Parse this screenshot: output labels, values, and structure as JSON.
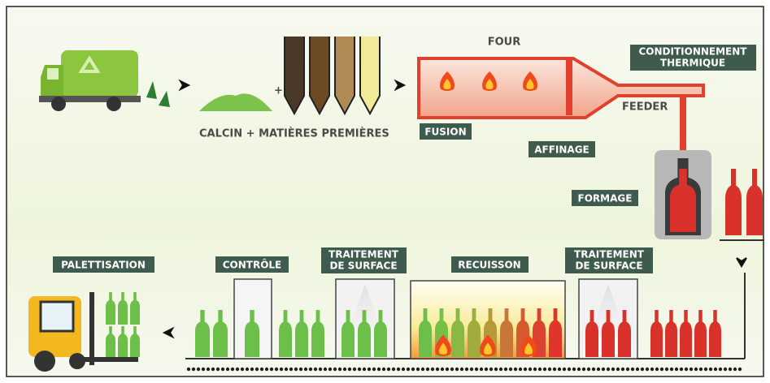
{
  "diagram": {
    "four": "FOUR",
    "conditionnement": [
      "CONDITIONNEMENT",
      "THERMIQUE"
    ],
    "feeder": "FEEDER",
    "plus": "+",
    "calcin": "CALCIN + MATIÈRES PREMIÈRES",
    "fusion": "FUSION",
    "affinage": "AFFINAGE",
    "formage": "FORMAGE",
    "palettisation": "PALETTISATION",
    "controle": "CONTRÔLE",
    "traitement_1": [
      "TRAITEMENT",
      "DE SURFACE"
    ],
    "recuisson": "RECUISSON",
    "traitement_2": [
      "TRAITEMENT",
      "DE SURFACE"
    ]
  }
}
